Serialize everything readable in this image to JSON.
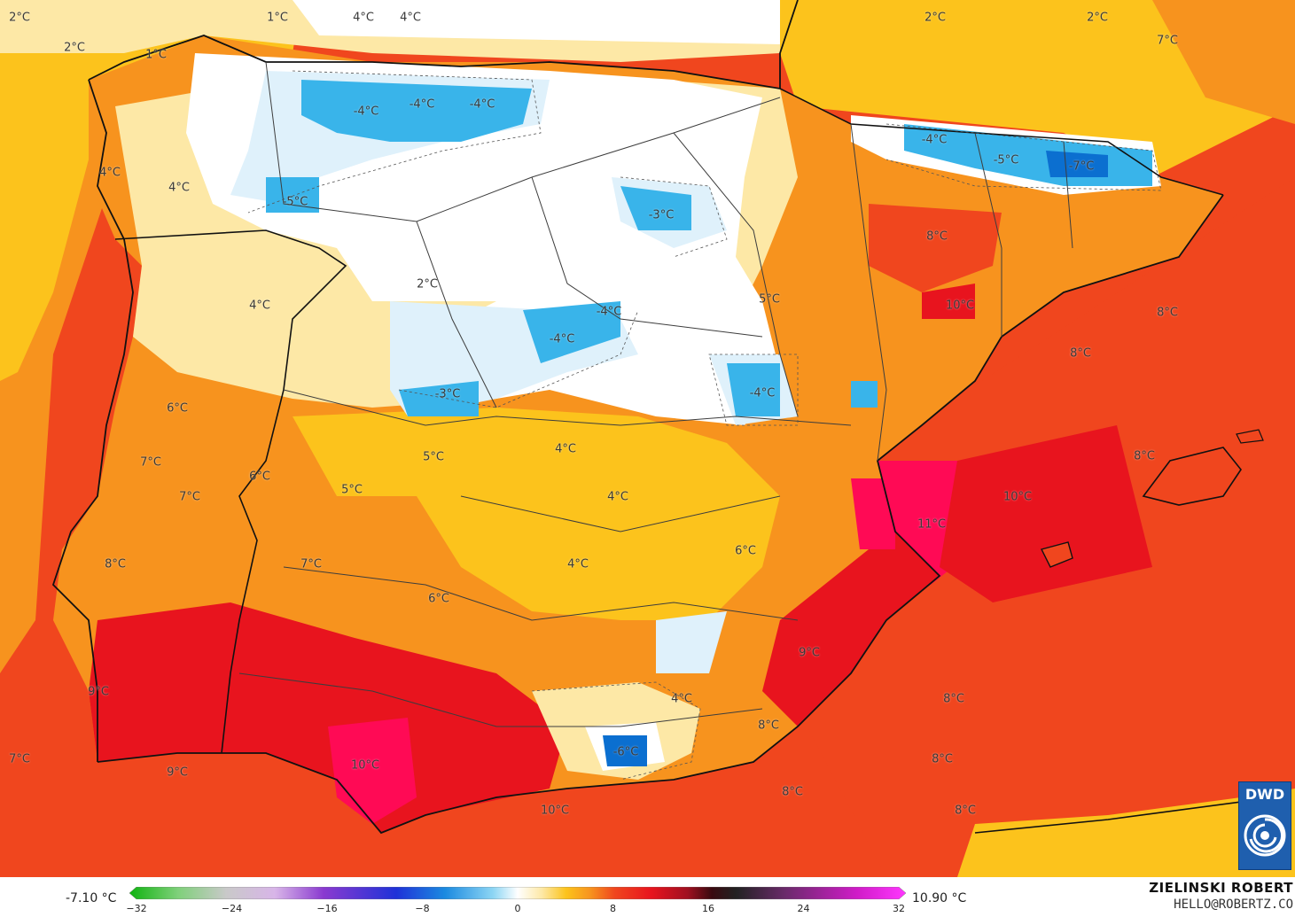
{
  "colors": {
    "sea_warm": "#f0461e",
    "sea_hot": "#e8141e",
    "sea_cool": "#f8b81a",
    "sea_cold": "#fbe39a",
    "land_orange": "#f7931e",
    "land_yellow": "#fcc31c",
    "land_pale": "#fde8a6",
    "snow_white": "#ffffff",
    "snow_light": "#dff1fb",
    "cold_blue": "#39b4ea",
    "very_cold": "#0b6fd0",
    "hot_red": "#ef1d3a",
    "hot_pink": "#ff0a55",
    "coast_line": "#111111",
    "border_line": "#3d3d3d",
    "dwd_blue": "#1f5fae"
  },
  "labels": [
    {
      "text": "2°C"
    },
    {
      "text": "2°C"
    },
    {
      "text": "1°C"
    },
    {
      "text": "1°C"
    },
    {
      "text": "4°C"
    },
    {
      "text": "4°C"
    },
    {
      "text": "2°C"
    },
    {
      "text": "2°C"
    },
    {
      "text": "7°C"
    },
    {
      "text": "-4°C"
    },
    {
      "text": "-4°C"
    },
    {
      "text": "-4°C"
    },
    {
      "text": "-4°C"
    },
    {
      "text": "-5°C"
    },
    {
      "text": "-7°C"
    },
    {
      "text": "4°C"
    },
    {
      "text": "4°C"
    },
    {
      "text": "-5°C"
    },
    {
      "text": "-3°C"
    },
    {
      "text": "8°C"
    },
    {
      "text": "2°C"
    },
    {
      "text": "4°C"
    },
    {
      "text": "5°C"
    },
    {
      "text": "10°C"
    },
    {
      "text": "8°C"
    },
    {
      "text": "-4°C"
    },
    {
      "text": "-4°C"
    },
    {
      "text": "8°C"
    },
    {
      "text": "-3°C"
    },
    {
      "text": "-4°C"
    },
    {
      "text": "6°C"
    },
    {
      "text": "5°C"
    },
    {
      "text": "4°C"
    },
    {
      "text": "8°C"
    },
    {
      "text": "7°C"
    },
    {
      "text": "6°C"
    },
    {
      "text": "5°C"
    },
    {
      "text": "7°C"
    },
    {
      "text": "4°C"
    },
    {
      "text": "10°C"
    },
    {
      "text": "11°C"
    },
    {
      "text": "7°C"
    },
    {
      "text": "4°C"
    },
    {
      "text": "6°C"
    },
    {
      "text": "8°C"
    },
    {
      "text": "6°C"
    },
    {
      "text": "9°C"
    },
    {
      "text": "9°C"
    },
    {
      "text": "4°C"
    },
    {
      "text": "8°C"
    },
    {
      "text": "8°C"
    },
    {
      "text": "-6°C"
    },
    {
      "text": "10°C"
    },
    {
      "text": "7°C"
    },
    {
      "text": "9°C"
    },
    {
      "text": "8°C"
    },
    {
      "text": "8°C"
    },
    {
      "text": "10°C"
    },
    {
      "text": "8°C"
    }
  ],
  "legend": {
    "min_label": "-7.10 °C",
    "max_label": "10.90 °C",
    "ticks": [
      "−32",
      "−24",
      "−16",
      "−8",
      "0",
      "8",
      "16",
      "24",
      "32"
    ],
    "stops": [
      {
        "value": -32,
        "color": "#0fb30f"
      },
      {
        "value": -28,
        "color": "#7fd07a"
      },
      {
        "value": -24,
        "color": "#c9c9c9"
      },
      {
        "value": -20,
        "color": "#d8b5e8"
      },
      {
        "value": -16,
        "color": "#8a3ad0"
      },
      {
        "value": -10,
        "color": "#1f32d8"
      },
      {
        "value": -6,
        "color": "#1b8ae0"
      },
      {
        "value": -2,
        "color": "#8ed6f4"
      },
      {
        "value": 0,
        "color": "#ffffff"
      },
      {
        "value": 2,
        "color": "#fde8a6"
      },
      {
        "value": 4,
        "color": "#fcc31c"
      },
      {
        "value": 6,
        "color": "#f7931e"
      },
      {
        "value": 8,
        "color": "#f0461e"
      },
      {
        "value": 11,
        "color": "#e8141e"
      },
      {
        "value": 14,
        "color": "#a01020"
      },
      {
        "value": 16,
        "color": "#3a0a10"
      },
      {
        "value": 18,
        "color": "#222222"
      },
      {
        "value": 22,
        "color": "#6a2a6a"
      },
      {
        "value": 28,
        "color": "#d01cc8"
      },
      {
        "value": 32,
        "color": "#ff36ff"
      }
    ]
  },
  "credit": {
    "name": "ZIELINSKI ROBERT",
    "email": "HELLO@ROBERTZ.CO"
  },
  "logo": {
    "text": "DWD",
    "icon": "dwd-swirl-icon"
  }
}
